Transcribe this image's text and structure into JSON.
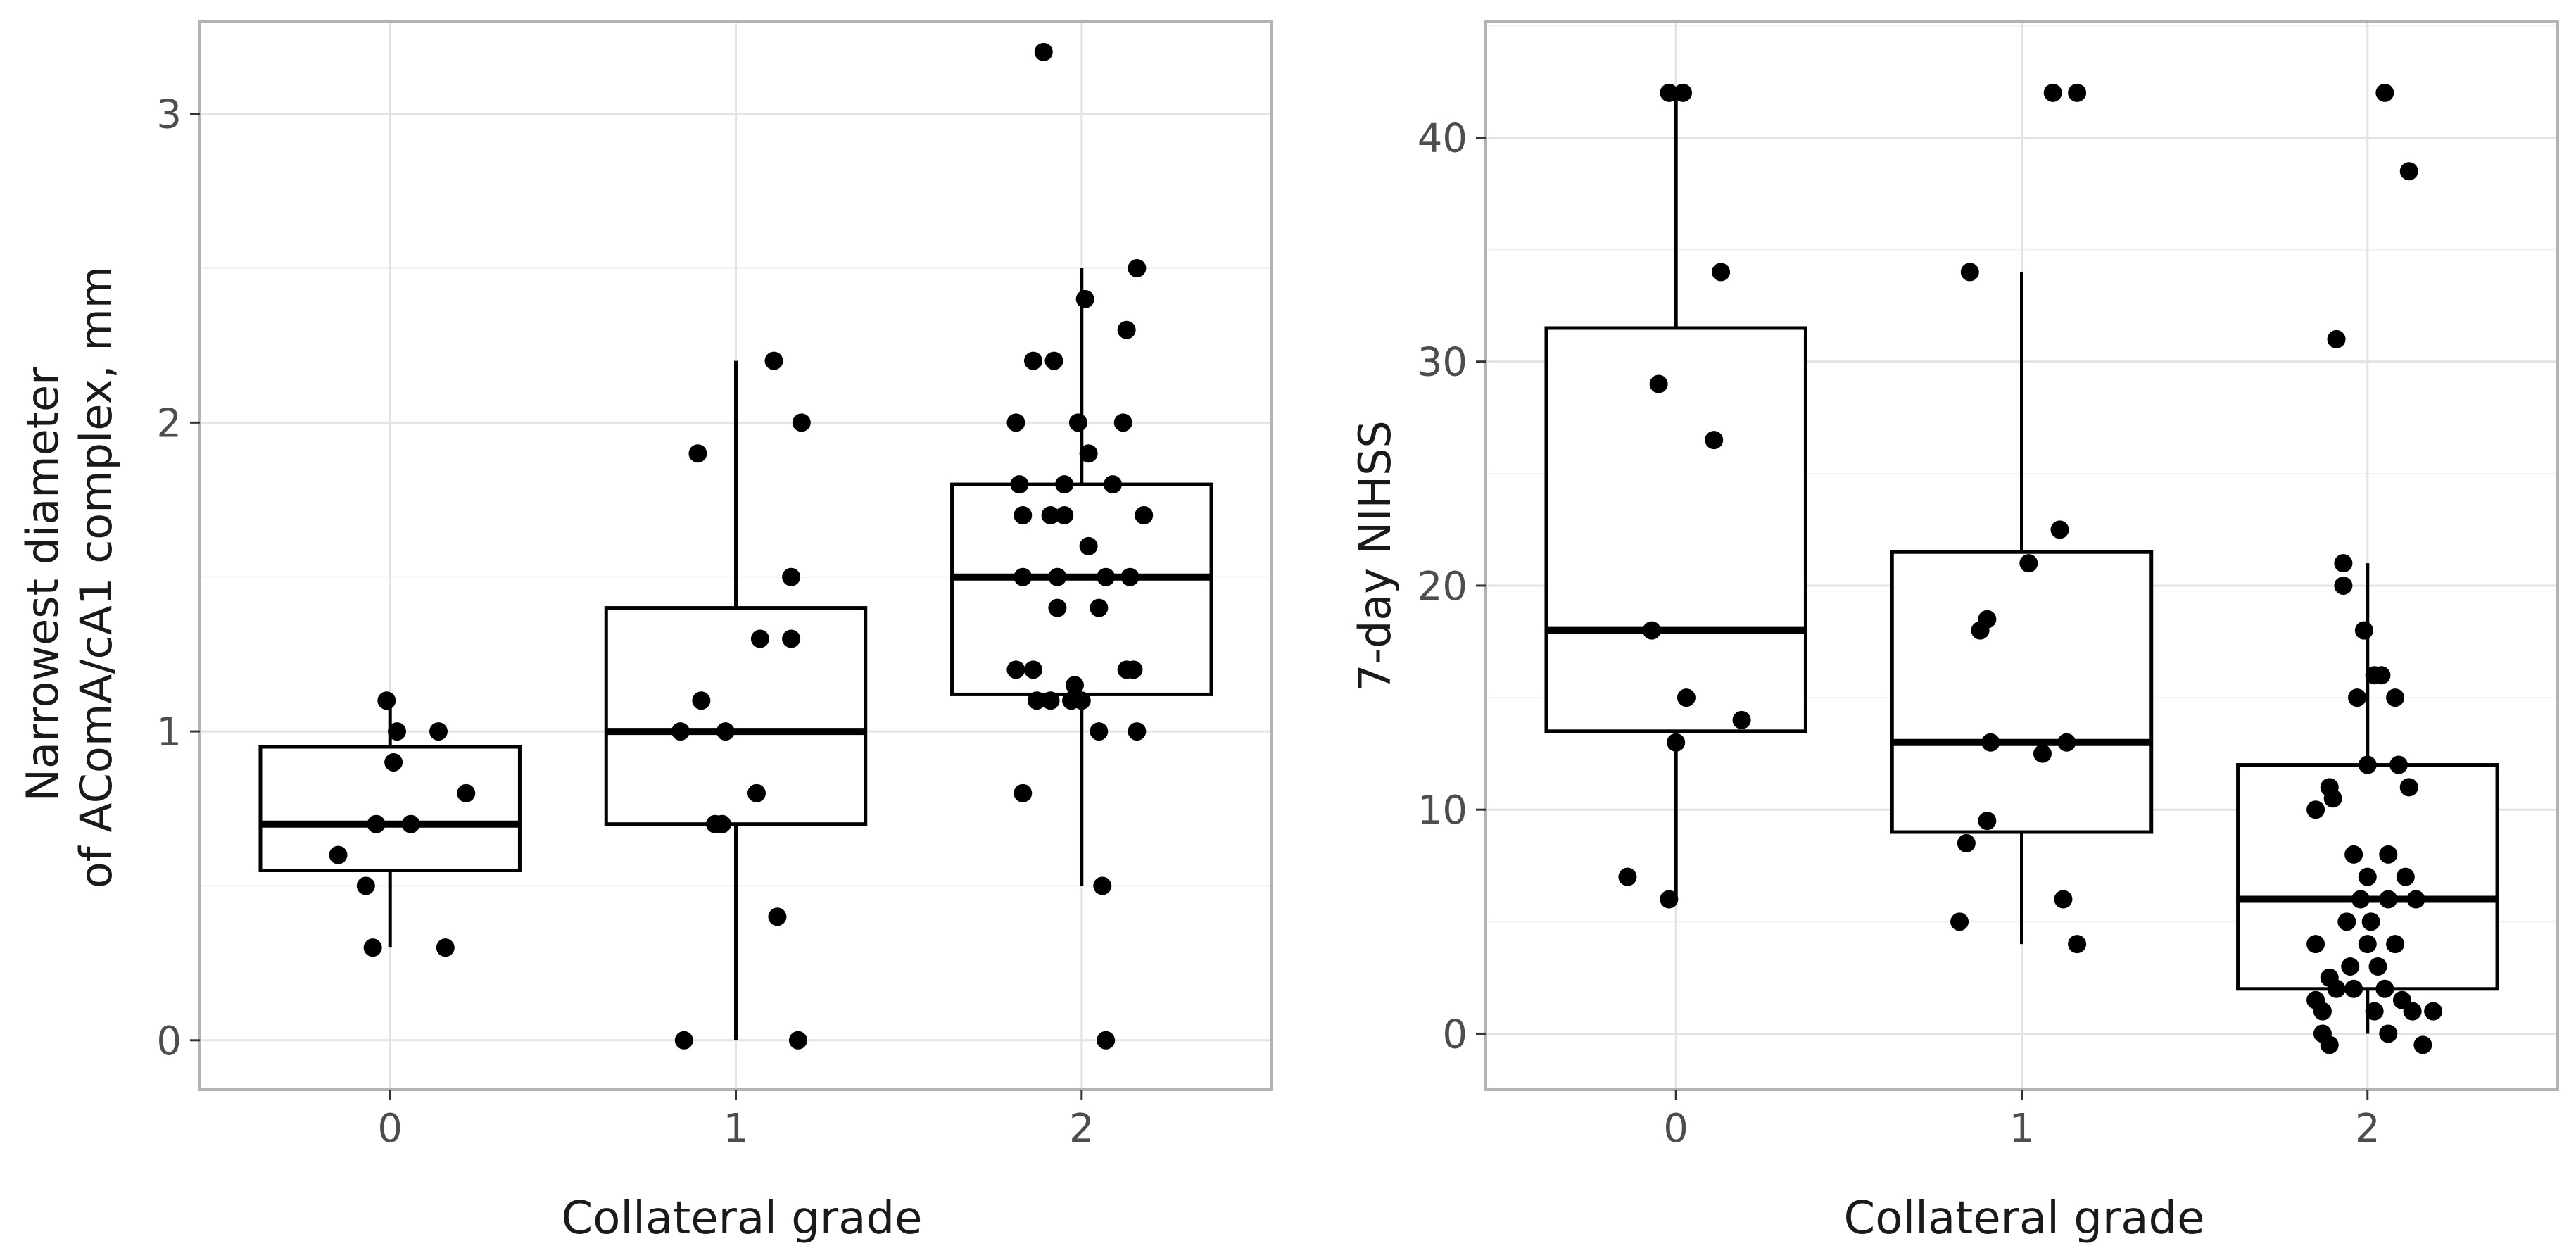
{
  "colors": {
    "panel_border": "#b3b3b3",
    "major_grid": "#e3e3e3",
    "minor_grid": "#f2f2f2",
    "box_stroke": "#000000",
    "point_fill": "#000000",
    "background": "#ffffff"
  },
  "chart_data": [
    {
      "type": "boxplot",
      "xlabel": "Collateral grade",
      "ylabel_lines": [
        "Narrowest diameter",
        "of AComA/cA1 complex, mm"
      ],
      "categories": [
        "0",
        "1",
        "2"
      ],
      "yticks": [
        0,
        1,
        2,
        3
      ],
      "ylim": [
        -0.16,
        3.3
      ],
      "grid": true,
      "boxes": [
        {
          "category": "0",
          "q1": 0.55,
          "median": 0.7,
          "q3": 0.95,
          "whisker_low": 0.3,
          "whisker_high": 1.1
        },
        {
          "category": "1",
          "q1": 0.7,
          "median": 1.0,
          "q3": 1.4,
          "whisker_low": 0.0,
          "whisker_high": 2.2
        },
        {
          "category": "2",
          "q1": 1.12,
          "median": 1.5,
          "q3": 1.8,
          "whisker_low": 0.5,
          "whisker_high": 2.5
        }
      ],
      "points": [
        {
          "x": -0.01,
          "y": 1.1
        },
        {
          "x": 0.02,
          "y": 1.0
        },
        {
          "x": 0.14,
          "y": 1.0
        },
        {
          "x": 0.01,
          "y": 0.9
        },
        {
          "x": 0.22,
          "y": 0.8
        },
        {
          "x": -0.04,
          "y": 0.7
        },
        {
          "x": 0.06,
          "y": 0.7
        },
        {
          "x": -0.15,
          "y": 0.6
        },
        {
          "x": -0.07,
          "y": 0.5
        },
        {
          "x": -0.05,
          "y": 0.3
        },
        {
          "x": 0.16,
          "y": 0.3
        },
        {
          "x": 1.11,
          "y": 2.2
        },
        {
          "x": 1.19,
          "y": 2.0
        },
        {
          "x": 0.89,
          "y": 1.9
        },
        {
          "x": 1.16,
          "y": 1.5
        },
        {
          "x": 1.07,
          "y": 1.3
        },
        {
          "x": 1.16,
          "y": 1.3
        },
        {
          "x": 0.9,
          "y": 1.1
        },
        {
          "x": 0.84,
          "y": 1.0
        },
        {
          "x": 0.97,
          "y": 1.0
        },
        {
          "x": 1.06,
          "y": 0.8
        },
        {
          "x": 0.94,
          "y": 0.7
        },
        {
          "x": 0.96,
          "y": 0.7
        },
        {
          "x": 1.12,
          "y": 0.4
        },
        {
          "x": 0.85,
          "y": 0.0
        },
        {
          "x": 1.18,
          "y": 0.0
        },
        {
          "x": 1.89,
          "y": 3.2
        },
        {
          "x": 2.16,
          "y": 2.5
        },
        {
          "x": 2.01,
          "y": 2.4
        },
        {
          "x": 2.13,
          "y": 2.3
        },
        {
          "x": 1.86,
          "y": 2.2
        },
        {
          "x": 1.92,
          "y": 2.2
        },
        {
          "x": 1.81,
          "y": 2.0
        },
        {
          "x": 1.99,
          "y": 2.0
        },
        {
          "x": 2.12,
          "y": 2.0
        },
        {
          "x": 2.02,
          "y": 1.9
        },
        {
          "x": 1.82,
          "y": 1.8
        },
        {
          "x": 1.95,
          "y": 1.8
        },
        {
          "x": 2.09,
          "y": 1.8
        },
        {
          "x": 1.83,
          "y": 1.7
        },
        {
          "x": 1.91,
          "y": 1.7
        },
        {
          "x": 1.95,
          "y": 1.7
        },
        {
          "x": 2.18,
          "y": 1.7
        },
        {
          "x": 2.02,
          "y": 1.6
        },
        {
          "x": 1.83,
          "y": 1.5
        },
        {
          "x": 1.93,
          "y": 1.5
        },
        {
          "x": 2.07,
          "y": 1.5
        },
        {
          "x": 2.14,
          "y": 1.5
        },
        {
          "x": 1.93,
          "y": 1.4
        },
        {
          "x": 2.05,
          "y": 1.4
        },
        {
          "x": 1.81,
          "y": 1.2
        },
        {
          "x": 1.86,
          "y": 1.2
        },
        {
          "x": 2.13,
          "y": 1.2
        },
        {
          "x": 2.15,
          "y": 1.2
        },
        {
          "x": 1.98,
          "y": 1.15
        },
        {
          "x": 1.87,
          "y": 1.1
        },
        {
          "x": 1.91,
          "y": 1.1
        },
        {
          "x": 1.97,
          "y": 1.1
        },
        {
          "x": 2.0,
          "y": 1.1
        },
        {
          "x": 2.05,
          "y": 1.0
        },
        {
          "x": 2.16,
          "y": 1.0
        },
        {
          "x": 1.83,
          "y": 0.8
        },
        {
          "x": 2.06,
          "y": 0.5
        },
        {
          "x": 2.07,
          "y": 0.0
        }
      ]
    },
    {
      "type": "boxplot",
      "xlabel": "Collateral grade",
      "ylabel": "7-day NIHSS",
      "categories": [
        "0",
        "1",
        "2"
      ],
      "yticks": [
        0,
        10,
        20,
        30,
        40
      ],
      "ylim": [
        -2.5,
        45.2
      ],
      "grid": true,
      "boxes": [
        {
          "category": "0",
          "q1": 13.5,
          "median": 18,
          "q3": 31.5,
          "whisker_low": 6,
          "whisker_high": 42
        },
        {
          "category": "1",
          "q1": 9,
          "median": 13,
          "q3": 21.5,
          "whisker_low": 4,
          "whisker_high": 34
        },
        {
          "category": "2",
          "q1": 2,
          "median": 6,
          "q3": 12,
          "whisker_low": 0,
          "whisker_high": 21
        }
      ],
      "points": [
        {
          "x": -0.02,
          "y": 42
        },
        {
          "x": 0.02,
          "y": 42
        },
        {
          "x": 0.13,
          "y": 34
        },
        {
          "x": -0.05,
          "y": 29
        },
        {
          "x": 0.11,
          "y": 26.5
        },
        {
          "x": -0.07,
          "y": 18
        },
        {
          "x": 0.03,
          "y": 15
        },
        {
          "x": 0.19,
          "y": 14
        },
        {
          "x": 0.0,
          "y": 13
        },
        {
          "x": -0.14,
          "y": 7
        },
        {
          "x": -0.02,
          "y": 6
        },
        {
          "x": 1.09,
          "y": 42
        },
        {
          "x": 1.16,
          "y": 42
        },
        {
          "x": 0.85,
          "y": 34
        },
        {
          "x": 1.11,
          "y": 22.5
        },
        {
          "x": 1.02,
          "y": 21
        },
        {
          "x": 0.88,
          "y": 18
        },
        {
          "x": 0.9,
          "y": 18.5
        },
        {
          "x": 0.91,
          "y": 13
        },
        {
          "x": 1.13,
          "y": 13
        },
        {
          "x": 1.06,
          "y": 12.5
        },
        {
          "x": 0.9,
          "y": 9.5
        },
        {
          "x": 0.84,
          "y": 8.5
        },
        {
          "x": 1.12,
          "y": 6
        },
        {
          "x": 0.82,
          "y": 5
        },
        {
          "x": 1.16,
          "y": 4
        },
        {
          "x": 2.05,
          "y": 42
        },
        {
          "x": 2.12,
          "y": 38.5
        },
        {
          "x": 1.91,
          "y": 31
        },
        {
          "x": 1.93,
          "y": 21
        },
        {
          "x": 1.93,
          "y": 20
        },
        {
          "x": 1.99,
          "y": 18
        },
        {
          "x": 2.02,
          "y": 16
        },
        {
          "x": 2.04,
          "y": 16
        },
        {
          "x": 1.97,
          "y": 15
        },
        {
          "x": 2.08,
          "y": 15
        },
        {
          "x": 2.0,
          "y": 12
        },
        {
          "x": 2.09,
          "y": 12
        },
        {
          "x": 1.89,
          "y": 11
        },
        {
          "x": 1.9,
          "y": 10.5
        },
        {
          "x": 1.85,
          "y": 10
        },
        {
          "x": 2.12,
          "y": 11
        },
        {
          "x": 1.96,
          "y": 8
        },
        {
          "x": 2.06,
          "y": 8
        },
        {
          "x": 2.0,
          "y": 7
        },
        {
          "x": 2.11,
          "y": 7
        },
        {
          "x": 1.98,
          "y": 6
        },
        {
          "x": 2.06,
          "y": 6
        },
        {
          "x": 2.14,
          "y": 6
        },
        {
          "x": 1.94,
          "y": 5
        },
        {
          "x": 2.01,
          "y": 5
        },
        {
          "x": 1.85,
          "y": 4
        },
        {
          "x": 2.0,
          "y": 4
        },
        {
          "x": 2.08,
          "y": 4
        },
        {
          "x": 1.95,
          "y": 3
        },
        {
          "x": 2.03,
          "y": 3
        },
        {
          "x": 1.89,
          "y": 2.5
        },
        {
          "x": 1.91,
          "y": 2
        },
        {
          "x": 1.96,
          "y": 2
        },
        {
          "x": 2.05,
          "y": 2
        },
        {
          "x": 1.85,
          "y": 1.5
        },
        {
          "x": 2.1,
          "y": 1.5
        },
        {
          "x": 1.87,
          "y": 1
        },
        {
          "x": 2.02,
          "y": 1
        },
        {
          "x": 2.13,
          "y": 1
        },
        {
          "x": 2.19,
          "y": 1
        },
        {
          "x": 2.06,
          "y": 0
        },
        {
          "x": 1.87,
          "y": 0
        },
        {
          "x": 1.89,
          "y": -0.5
        },
        {
          "x": 2.16,
          "y": -0.5
        }
      ]
    }
  ]
}
